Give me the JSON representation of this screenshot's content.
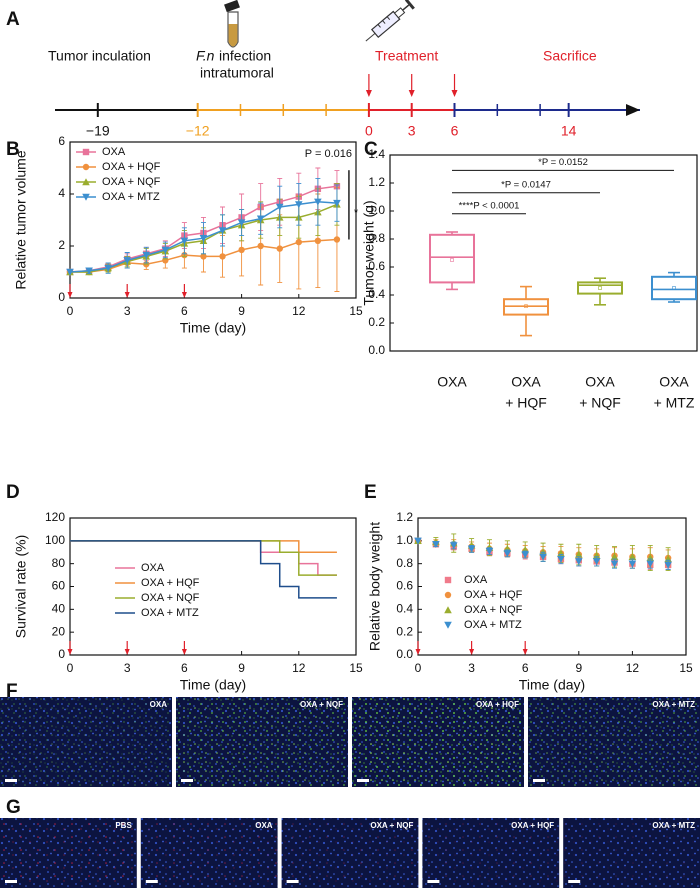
{
  "panel_labels": [
    "A",
    "B",
    "C",
    "D",
    "E",
    "F",
    "G"
  ],
  "timeline": {
    "events": {
      "inoculation": "Tumor inculation",
      "infection_italic": "F.n",
      "infection": "infection",
      "infection_line2": "intratumoral",
      "treatment": "Treatment",
      "sacrifice": "Sacrifice"
    },
    "xlim": [
      -22,
      19
    ],
    "ticks": [
      {
        "value": -19,
        "label": "−19"
      },
      {
        "value": -12,
        "label": "−12"
      },
      0,
      3,
      6,
      14
    ],
    "tick_colors": [
      "#111111",
      "#f0a020",
      "#e0202a",
      "#e0202a",
      "#e0202a",
      "#e0202a"
    ],
    "minor_ticks": [
      -9,
      -6,
      -3,
      9,
      12
    ],
    "segments": [
      {
        "from": -22,
        "to": -12,
        "color": "#111111"
      },
      {
        "from": -12,
        "to": 0,
        "color": "#f0a020"
      },
      {
        "from": 0,
        "to": 6,
        "color": "#e0202a"
      },
      {
        "from": 6,
        "to": 19,
        "color": "#1c2a8c"
      }
    ],
    "treatment_days": [
      0,
      3,
      6
    ]
  },
  "chart_data": [
    {
      "type": "line",
      "xlabel": "Time (day)",
      "ylabel": "Relative tumor volume",
      "x": [
        0,
        1,
        2,
        3,
        4,
        5,
        6,
        7,
        8,
        9,
        10,
        11,
        12,
        13,
        14
      ],
      "xlim": [
        0,
        15
      ],
      "xticks": [
        0,
        3,
        6,
        9,
        12,
        15
      ],
      "ylim": [
        0,
        6
      ],
      "yticks": [
        0,
        2,
        4,
        6
      ],
      "legend": "upper left",
      "treatment_days": [
        0,
        3,
        6
      ],
      "annotations": [
        "P = 0.016",
        "*"
      ],
      "series": [
        {
          "name": "OXA",
          "color": "#e8739a",
          "marker": "square",
          "values": [
            1,
            1.05,
            1.2,
            1.5,
            1.7,
            1.9,
            2.4,
            2.5,
            2.8,
            3.1,
            3.5,
            3.7,
            3.9,
            4.2,
            4.3
          ],
          "errors": [
            0,
            0.1,
            0.15,
            0.2,
            0.25,
            0.3,
            0.5,
            0.6,
            0.7,
            0.9,
            0.9,
            0.9,
            0.9,
            0.8,
            0.6
          ]
        },
        {
          "name": "OXA + HQF",
          "color": "#f0913e",
          "marker": "circle",
          "values": [
            1,
            1.0,
            1.1,
            1.35,
            1.3,
            1.45,
            1.65,
            1.6,
            1.6,
            1.85,
            2.0,
            1.9,
            2.15,
            2.2,
            2.25
          ],
          "errors": [
            0,
            0.1,
            0.1,
            0.2,
            0.2,
            0.3,
            0.5,
            0.6,
            0.8,
            1.0,
            1.5,
            1.3,
            1.8,
            1.8,
            2.0
          ]
        },
        {
          "name": "OXA + NQF",
          "color": "#9aad2e",
          "marker": "triangle-up",
          "values": [
            1,
            1.0,
            1.15,
            1.4,
            1.6,
            1.8,
            2.1,
            2.2,
            2.6,
            2.8,
            3.0,
            3.1,
            3.1,
            3.3,
            3.6
          ],
          "errors": [
            0,
            0.1,
            0.15,
            0.2,
            0.3,
            0.3,
            0.5,
            0.5,
            0.6,
            0.6,
            0.7,
            0.7,
            0.8,
            0.9,
            0.8
          ]
        },
        {
          "name": "OXA + MTZ",
          "color": "#3c8fcf",
          "marker": "triangle-down",
          "values": [
            1,
            1.05,
            1.15,
            1.45,
            1.65,
            1.85,
            2.2,
            2.3,
            2.6,
            2.9,
            3.05,
            3.5,
            3.6,
            3.7,
            3.65
          ],
          "errors": [
            0,
            0.1,
            0.2,
            0.3,
            0.3,
            0.3,
            0.5,
            0.6,
            0.6,
            0.5,
            0.6,
            0.8,
            0.8,
            0.9,
            0.7
          ]
        }
      ]
    },
    {
      "type": "box",
      "ylabel": "Tumor weight (g)",
      "categories": [
        [
          "OXA"
        ],
        [
          "OXA",
          "+ HQF"
        ],
        [
          "OXA",
          "+ NQF"
        ],
        [
          "OXA",
          "+ MTZ"
        ]
      ],
      "colors": [
        "#e8739a",
        "#f0913e",
        "#9aad2e",
        "#3c8fcf"
      ],
      "ylim": [
        0,
        1.4
      ],
      "yticks": [
        {
          "value": 0,
          "label": "0.0"
        },
        {
          "value": 0.2,
          "label": "0.2"
        },
        {
          "value": 0.4,
          "label": "0.4"
        },
        {
          "value": 0.6,
          "label": "0.6"
        },
        {
          "value": 0.8,
          "label": "0.8"
        },
        {
          "value": 1.0,
          "label": "1.0"
        },
        {
          "value": 1.2,
          "label": "1.2"
        },
        {
          "value": 1.4,
          "label": "1.4"
        }
      ],
      "boxes": [
        {
          "min": 0.44,
          "q1": 0.49,
          "median": 0.67,
          "q3": 0.83,
          "max": 0.85,
          "mean": 0.65
        },
        {
          "min": 0.11,
          "q1": 0.26,
          "median": 0.32,
          "q3": 0.37,
          "max": 0.46,
          "mean": 0.32
        },
        {
          "min": 0.33,
          "q1": 0.41,
          "median": 0.47,
          "q3": 0.49,
          "max": 0.52,
          "mean": 0.45
        },
        {
          "min": 0.35,
          "q1": 0.37,
          "median": 0.44,
          "q3": 0.53,
          "max": 0.56,
          "mean": 0.45
        }
      ],
      "comparisons": [
        {
          "from": 0,
          "to": 1,
          "y": 0.98,
          "label": "****P < 0.0001"
        },
        {
          "from": 0,
          "to": 2,
          "y": 1.13,
          "label": "*P = 0.0147"
        },
        {
          "from": 0,
          "to": 3,
          "y": 1.29,
          "label": "*P = 0.0152"
        }
      ]
    },
    {
      "type": "step",
      "xlabel": "Time (day)",
      "ylabel": "Survival rate (%)",
      "xlim": [
        0,
        15
      ],
      "xticks": [
        0,
        3,
        6,
        9,
        12,
        15
      ],
      "ylim": [
        0,
        120
      ],
      "yticks": [
        0,
        20,
        40,
        60,
        80,
        100,
        120
      ],
      "legend": "center",
      "treatment_days": [
        0,
        3,
        6
      ],
      "series": [
        {
          "name": "OXA",
          "color": "#e8739a",
          "x": [
            0,
            10,
            12,
            13,
            14
          ],
          "values": [
            100,
            90,
            80,
            70,
            70
          ]
        },
        {
          "name": "OXA + HQF",
          "color": "#f0913e",
          "x": [
            0,
            12,
            14
          ],
          "values": [
            100,
            90,
            90
          ]
        },
        {
          "name": "OXA + NQF",
          "color": "#9aad2e",
          "x": [
            0,
            11,
            12,
            14
          ],
          "values": [
            100,
            90,
            70,
            70
          ]
        },
        {
          "name": "OXA + MTZ",
          "color": "#1f4e8c",
          "x": [
            0,
            10,
            11,
            12,
            14
          ],
          "values": [
            100,
            80,
            60,
            50,
            50
          ]
        }
      ]
    },
    {
      "type": "scatter",
      "xlabel": "Time (day)",
      "ylabel": "Relative body weight",
      "x": [
        0,
        1,
        2,
        3,
        4,
        5,
        6,
        7,
        8,
        9,
        10,
        11,
        12,
        13,
        14
      ],
      "xlim": [
        0,
        15
      ],
      "xticks": [
        0,
        3,
        6,
        9,
        12,
        15
      ],
      "ylim": [
        0,
        1.2
      ],
      "yticks": [
        {
          "value": 0,
          "label": "0.0"
        },
        {
          "value": 0.2,
          "label": "0.2"
        },
        {
          "value": 0.4,
          "label": "0.4"
        },
        {
          "value": 0.6,
          "label": "0.6"
        },
        {
          "value": 0.8,
          "label": "0.8"
        },
        {
          "value": 1.0,
          "label": "1.0"
        },
        {
          "value": 1.2,
          "label": "1.2"
        }
      ],
      "legend": "center",
      "treatment_days": [
        0,
        3,
        6
      ],
      "series": [
        {
          "name": "OXA",
          "color": "#f07a8a",
          "marker": "square",
          "values": [
            1,
            0.97,
            0.95,
            0.93,
            0.9,
            0.89,
            0.88,
            0.86,
            0.84,
            0.83,
            0.82,
            0.81,
            0.8,
            0.79,
            0.79
          ],
          "errors": [
            0,
            0.02,
            0.03,
            0.03,
            0.03,
            0.03,
            0.04,
            0.04,
            0.04,
            0.05,
            0.04,
            0.04,
            0.04,
            0.04,
            0.04
          ]
        },
        {
          "name": "OXA + HQF",
          "color": "#f0913e",
          "marker": "circle",
          "values": [
            1,
            0.98,
            0.97,
            0.95,
            0.93,
            0.92,
            0.91,
            0.9,
            0.89,
            0.88,
            0.87,
            0.87,
            0.86,
            0.86,
            0.85
          ],
          "errors": [
            0,
            0.03,
            0.04,
            0.04,
            0.05,
            0.05,
            0.05,
            0.05,
            0.06,
            0.06,
            0.06,
            0.07,
            0.07,
            0.08,
            0.07
          ]
        },
        {
          "name": "OXA + NQF",
          "color": "#9aad2e",
          "marker": "triangle-up",
          "values": [
            1,
            0.99,
            0.98,
            0.96,
            0.94,
            0.93,
            0.92,
            0.9,
            0.89,
            0.88,
            0.87,
            0.86,
            0.86,
            0.85,
            0.84
          ],
          "errors": [
            0,
            0.04,
            0.08,
            0.06,
            0.07,
            0.07,
            0.07,
            0.08,
            0.08,
            0.09,
            0.09,
            0.09,
            0.1,
            0.11,
            0.1
          ]
        },
        {
          "name": "OXA + MTZ",
          "color": "#3c8fcf",
          "marker": "triangle-down",
          "values": [
            1,
            0.97,
            0.96,
            0.93,
            0.91,
            0.89,
            0.88,
            0.86,
            0.84,
            0.82,
            0.82,
            0.8,
            0.8,
            0.8,
            0.79
          ],
          "errors": [
            0,
            0.02,
            0.03,
            0.03,
            0.03,
            0.03,
            0.03,
            0.04,
            0.04,
            0.04,
            0.04,
            0.04,
            0.04,
            0.04,
            0.04
          ]
        }
      ]
    }
  ],
  "images_f": [
    "OXA",
    "OXA + NQF",
    "OXA + HQF",
    "OXA + MTZ"
  ],
  "images_g": [
    "PBS",
    "OXA",
    "OXA + NQF",
    "OXA + HQF",
    "OXA + MTZ"
  ]
}
